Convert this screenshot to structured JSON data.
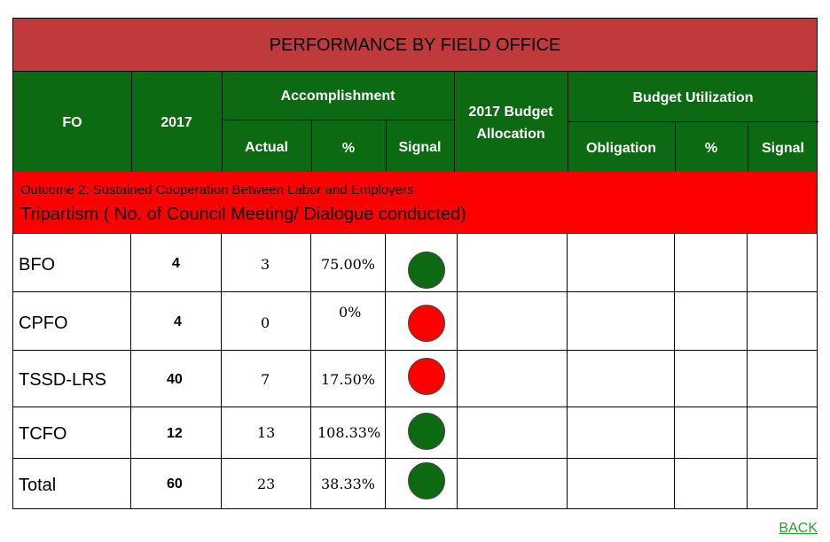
{
  "title": "PERFORMANCE BY FIELD OFFICE",
  "header": {
    "fo": "FO",
    "year": "2017",
    "accomplishment": "Accomplishment",
    "actual": "Actual",
    "percent": "%",
    "signal": "Signal",
    "budget_allocation_line1": "2017 Budget",
    "budget_allocation_line2": "Allocation",
    "budget_utilization": "Budget Utilization",
    "obligation": "Obligation",
    "util_percent": "%",
    "util_signal": "Signal"
  },
  "outcome": {
    "line1": "Outcome 2: Sustained Cooperation Between Labor and Employers",
    "line2": "Tripartism  ( No. of Council Meeting/ Dialogue conducted)"
  },
  "colors": {
    "green": "#0b6a12",
    "red": "#ff0000",
    "title_bg": "#c0393b"
  },
  "rows": [
    {
      "fo": "BFO",
      "target": "4",
      "actual": "3",
      "percent": "75.00%",
      "signal": "green"
    },
    {
      "fo": "CPFO",
      "target": "4",
      "actual": "0",
      "percent": "0%",
      "signal": "red"
    },
    {
      "fo": "TSSD-LRS",
      "target": "40",
      "actual": "7",
      "percent": "17.50%",
      "signal": "red"
    },
    {
      "fo": "TCFO",
      "target": "12",
      "actual": "13",
      "percent": "108.33%",
      "signal": "green"
    },
    {
      "fo": "Total",
      "target": "60",
      "actual": "23",
      "percent": "38.33%",
      "signal": "green"
    }
  ],
  "back_link": "BACK"
}
